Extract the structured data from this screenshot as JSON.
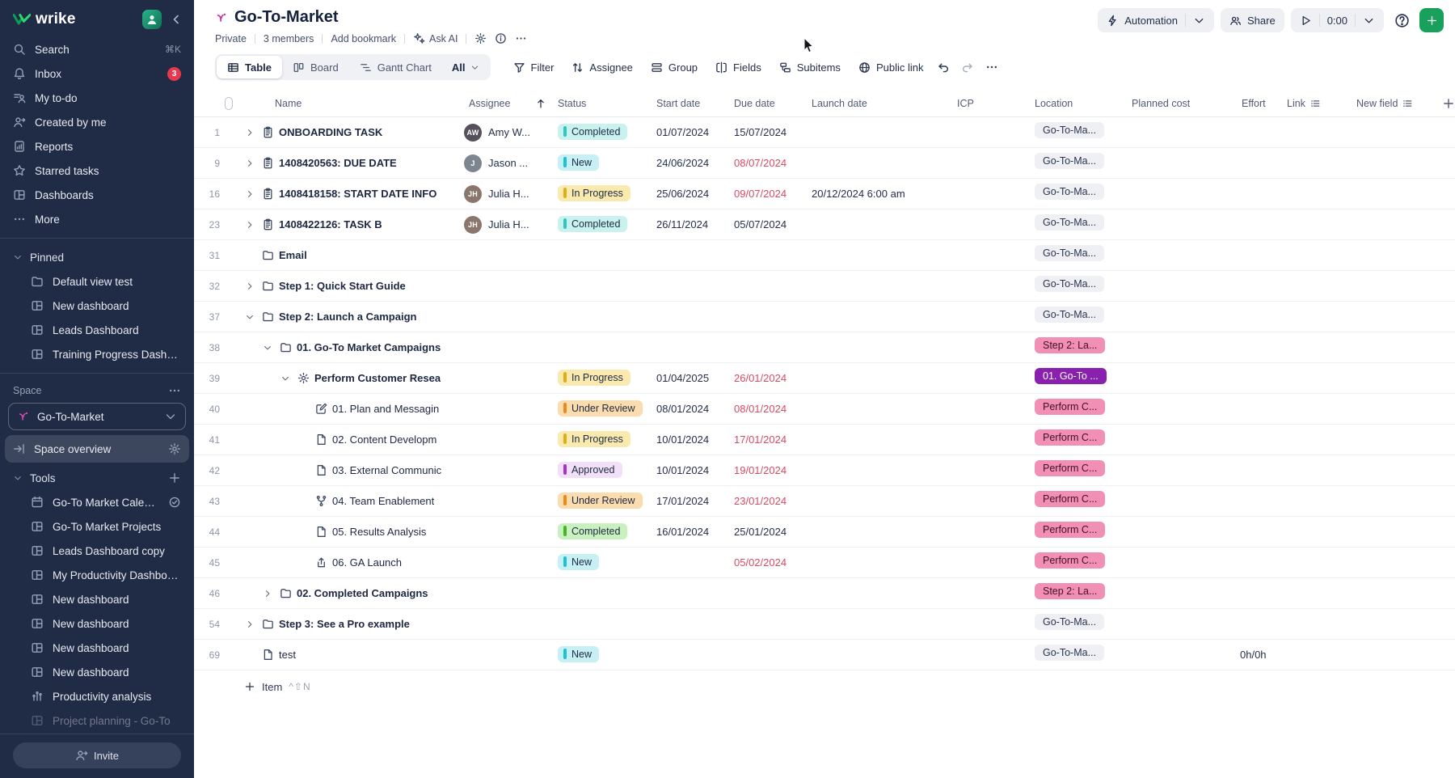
{
  "colors": {
    "accent_green": "#18a05c",
    "sidebar_bg": "#202b45",
    "overdue": "#d84a64",
    "status": {
      "completed-teal": {
        "bg": "#c9f2ee",
        "bar": "#2ec6bd"
      },
      "new": {
        "bg": "#c7f0f5",
        "bar": "#1ec0d2"
      },
      "in-progress": {
        "bg": "#faeab0",
        "bar": "#e0ac18"
      },
      "under-review": {
        "bg": "#fbdcae",
        "bar": "#e98a1d"
      },
      "approved": {
        "bg": "#f1e0f8",
        "bar": "#a233cc"
      },
      "completed-green": {
        "bg": "#c9f0bf",
        "bar": "#46b32a"
      }
    },
    "location": {
      "gray": {
        "bg": "#eef0f4",
        "fg": "#2a3550"
      },
      "pink": {
        "bg": "#f18fb4",
        "fg": "#441126"
      },
      "purple": {
        "bg": "#8a21ae",
        "fg": "#ffffff"
      }
    }
  },
  "sidebar": {
    "logo": "wrike",
    "nav": [
      {
        "icon": "search",
        "label": "Search",
        "shortcut": "⌘K"
      },
      {
        "icon": "bell",
        "label": "Inbox",
        "badge": "3"
      },
      {
        "icon": "todo",
        "label": "My to-do"
      },
      {
        "icon": "person-arrow",
        "label": "Created by me"
      },
      {
        "icon": "report",
        "label": "Reports"
      },
      {
        "icon": "star",
        "label": "Starred tasks"
      },
      {
        "icon": "dashboard",
        "label": "Dashboards"
      },
      {
        "icon": "dots",
        "label": "More"
      }
    ],
    "pinned": {
      "label": "Pinned",
      "items": [
        {
          "icon": "folder",
          "label": "Default view test"
        },
        {
          "icon": "dashboard",
          "label": "New dashboard"
        },
        {
          "icon": "dashboard",
          "label": "Leads Dashboard"
        },
        {
          "icon": "dashboard",
          "label": "Training Progress Dashb..."
        }
      ]
    },
    "space": {
      "label": "Space",
      "selector": "Go-To-Market",
      "overview": "Space overview",
      "tools_label": "Tools",
      "tools": [
        {
          "icon": "calendar",
          "label": "Go-To Market Calendar",
          "trailing": "check-circle"
        },
        {
          "icon": "dashboard",
          "label": "Go-To Market Projects"
        },
        {
          "icon": "dashboard",
          "label": "Leads Dashboard copy"
        },
        {
          "icon": "dashboard",
          "label": "My Productivity Dashboa..."
        },
        {
          "icon": "dashboard",
          "label": "New dashboard"
        },
        {
          "icon": "dashboard",
          "label": "New dashboard"
        },
        {
          "icon": "dashboard",
          "label": "New dashboard"
        },
        {
          "icon": "dashboard",
          "label": "New dashboard"
        },
        {
          "icon": "chart",
          "label": "Productivity analysis"
        },
        {
          "icon": "dashboard",
          "label": "Project planning - Go-To",
          "faded": true
        }
      ]
    },
    "invite_label": "Invite"
  },
  "header": {
    "title": "Go-To-Market",
    "meta": [
      "Private",
      "3 members",
      "Add bookmark"
    ],
    "ask_ai": "Ask AI",
    "actions": {
      "automation": "Automation",
      "share": "Share",
      "timer": "0:00"
    }
  },
  "toolbar": {
    "tabs": [
      {
        "icon": "table",
        "label": "Table",
        "active": true
      },
      {
        "icon": "board",
        "label": "Board"
      },
      {
        "icon": "gantt",
        "label": "Gantt Chart"
      }
    ],
    "scope": "All",
    "buttons": [
      {
        "icon": "filter",
        "label": "Filter"
      },
      {
        "icon": "updown",
        "label": "Assignee"
      },
      {
        "icon": "group",
        "label": "Group"
      },
      {
        "icon": "fields",
        "label": "Fields"
      },
      {
        "icon": "subitems",
        "label": "Subitems"
      },
      {
        "icon": "globe",
        "label": "Public link"
      }
    ]
  },
  "table": {
    "columns": {
      "name": "Name",
      "assignee": "Assignee",
      "status": "Status",
      "start": "Start date",
      "due": "Due date",
      "launch": "Launch date",
      "icp": "ICP",
      "location": "Location",
      "planned": "Planned cost",
      "effort": "Effort",
      "link": "Link",
      "new_field": "New field"
    },
    "rows": [
      {
        "num": "1",
        "level": 1,
        "expand": "right",
        "icon": "clipboard",
        "name": "ONBOARDING TASK",
        "bold": true,
        "assignee": {
          "initials": "AW",
          "label": "Amy W...",
          "color": "#55505c"
        },
        "status": {
          "label": "Completed",
          "type": "completed-teal"
        },
        "start": "01/07/2024",
        "due": "15/07/2024",
        "overdue": false,
        "location": {
          "label": "Go-To-Ma...",
          "type": "gray"
        }
      },
      {
        "num": "9",
        "level": 1,
        "expand": "right",
        "icon": "clipboard",
        "name": "1408420563: DUE DATE",
        "bold": true,
        "assignee": {
          "initials": "J",
          "label": "Jason ...",
          "color": "#7d858f"
        },
        "status": {
          "label": "New",
          "type": "new"
        },
        "start": "24/06/2024",
        "due": "08/07/2024",
        "overdue": true,
        "location": {
          "label": "Go-To-Ma...",
          "type": "gray"
        }
      },
      {
        "num": "16",
        "level": 1,
        "expand": "right",
        "icon": "clipboard",
        "name": "1408418158: START DATE INFO",
        "bold": true,
        "assignee": {
          "initials": "JH",
          "label": "Julia H...",
          "color": "#8a766b"
        },
        "status": {
          "label": "In Progress",
          "type": "in-progress"
        },
        "start": "25/06/2024",
        "due": "09/07/2024",
        "overdue": true,
        "launch": "20/12/2024 6:00 am",
        "location": {
          "label": "Go-To-Ma...",
          "type": "gray"
        }
      },
      {
        "num": "23",
        "level": 1,
        "expand": "right",
        "icon": "clipboard",
        "name": "1408422126: TASK B",
        "bold": true,
        "assignee": {
          "initials": "JH",
          "label": "Julia H...",
          "color": "#8a766b"
        },
        "status": {
          "label": "Completed",
          "type": "completed-teal"
        },
        "start": "26/11/2024",
        "due": "05/07/2024",
        "overdue": false,
        "location": {
          "label": "Go-To-Ma...",
          "type": "gray"
        }
      },
      {
        "num": "31",
        "level": 1,
        "expand": null,
        "icon": "folder",
        "name": "Email",
        "bold": true,
        "location": {
          "label": "Go-To-Ma...",
          "type": "gray"
        }
      },
      {
        "num": "32",
        "level": 1,
        "expand": "right",
        "icon": "folder",
        "name": "Step 1: Quick Start Guide",
        "bold": true,
        "location": {
          "label": "Go-To-Ma...",
          "type": "gray"
        }
      },
      {
        "num": "37",
        "level": 1,
        "expand": "down",
        "icon": "folder",
        "name": "Step 2: Launch a Campaign",
        "bold": true,
        "location": {
          "label": "Go-To-Ma...",
          "type": "gray"
        }
      },
      {
        "num": "38",
        "level": 2,
        "expand": "down",
        "icon": "folder",
        "name": "01. Go-To Market Campaigns",
        "bold": true,
        "location": {
          "label": "Step 2: La...",
          "type": "pink"
        }
      },
      {
        "num": "39",
        "level": 3,
        "expand": "down",
        "icon": "burst",
        "name": "Perform Customer Resea",
        "bold": true,
        "status": {
          "label": "In Progress",
          "type": "in-progress"
        },
        "start": "01/04/2025",
        "due": "26/01/2024",
        "overdue": true,
        "location": {
          "label": "01. Go-To ...",
          "type": "purple"
        }
      },
      {
        "num": "40",
        "level": 4,
        "expand": null,
        "icon": "pencil",
        "name": "01. Plan and Messagin",
        "bold": false,
        "status": {
          "label": "Under Review",
          "type": "under-review"
        },
        "start": "08/01/2024",
        "due": "08/01/2024",
        "overdue": true,
        "location": {
          "label": "Perform C...",
          "type": "pink"
        }
      },
      {
        "num": "41",
        "level": 4,
        "expand": null,
        "icon": "page",
        "name": "02. Content Developm",
        "bold": false,
        "status": {
          "label": "In Progress",
          "type": "in-progress"
        },
        "start": "10/01/2024",
        "due": "17/01/2024",
        "overdue": true,
        "location": {
          "label": "Perform C...",
          "type": "pink"
        }
      },
      {
        "num": "42",
        "level": 4,
        "expand": null,
        "icon": "page",
        "name": "03. External Communic",
        "bold": false,
        "status": {
          "label": "Approved",
          "type": "approved"
        },
        "start": "10/01/2024",
        "due": "19/01/2024",
        "overdue": true,
        "location": {
          "label": "Perform C...",
          "type": "pink"
        }
      },
      {
        "num": "43",
        "level": 4,
        "expand": null,
        "icon": "fork",
        "name": "04. Team Enablement",
        "bold": false,
        "status": {
          "label": "Under Review",
          "type": "under-review"
        },
        "start": "17/01/2024",
        "due": "23/01/2024",
        "overdue": true,
        "location": {
          "label": "Perform C...",
          "type": "pink"
        }
      },
      {
        "num": "44",
        "level": 4,
        "expand": null,
        "icon": "page",
        "name": "05. Results Analysis",
        "bold": false,
        "status": {
          "label": "Completed",
          "type": "completed-green"
        },
        "start": "16/01/2024",
        "due": "25/01/2024",
        "overdue": false,
        "location": {
          "label": "Perform C...",
          "type": "pink"
        }
      },
      {
        "num": "45",
        "level": 4,
        "expand": null,
        "icon": "launch",
        "name": "06. GA Launch",
        "bold": false,
        "status": {
          "label": "New",
          "type": "new"
        },
        "due": "05/02/2024",
        "overdue": true,
        "location": {
          "label": "Perform C...",
          "type": "pink"
        }
      },
      {
        "num": "46",
        "level": 2,
        "expand": "right",
        "icon": "folder",
        "name": "02. Completed Campaigns",
        "bold": true,
        "location": {
          "label": "Step 2: La...",
          "type": "pink"
        }
      },
      {
        "num": "54",
        "level": 1,
        "expand": "right",
        "icon": "folder",
        "name": "Step 3: See a Pro example",
        "bold": true,
        "location": {
          "label": "Go-To-Ma...",
          "type": "gray"
        }
      },
      {
        "num": "69",
        "level": 1,
        "expand": null,
        "icon": "page",
        "name": "test",
        "bold": false,
        "status": {
          "label": "New",
          "type": "new"
        },
        "location": {
          "label": "Go-To-Ma...",
          "type": "gray"
        },
        "effort": "0h/0h"
      }
    ],
    "add_item": {
      "label": "Item",
      "shortcut": "^⇧N"
    }
  }
}
